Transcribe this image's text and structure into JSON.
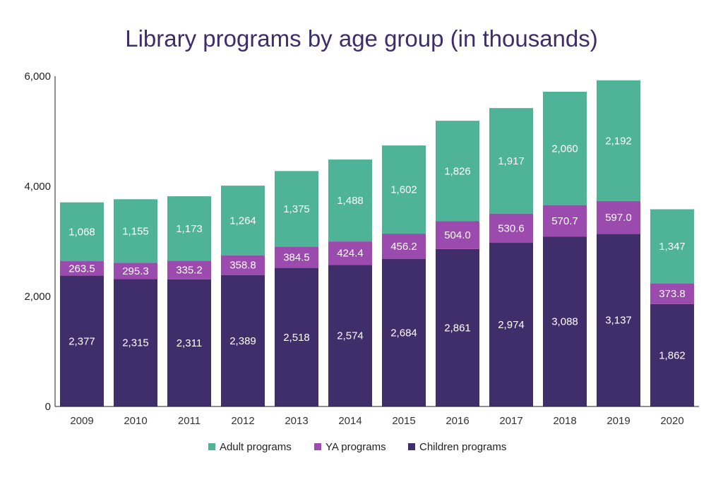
{
  "chart_data": {
    "type": "bar",
    "stacked": true,
    "title": "Library programs by age group (in thousands)",
    "xlabel": "",
    "ylabel": "",
    "ylim": [
      0,
      6000
    ],
    "yticks": [
      0,
      2000,
      4000,
      6000
    ],
    "ytick_labels": [
      "0",
      "2,000",
      "4,000",
      "6,000"
    ],
    "categories": [
      "2009",
      "2010",
      "2011",
      "2012",
      "2013",
      "2014",
      "2015",
      "2016",
      "2017",
      "2018",
      "2019",
      "2020"
    ],
    "series": [
      {
        "name": "Children programs",
        "color": "#402e6b",
        "values": [
          2377,
          2315,
          2311,
          2389,
          2518,
          2574,
          2684,
          2861,
          2974,
          3088,
          3137,
          1862
        ],
        "labels": [
          "2,377",
          "2,315",
          "2,311",
          "2,389",
          "2,518",
          "2,574",
          "2,684",
          "2,861",
          "2,974",
          "3,088",
          "3,137",
          "1,862"
        ]
      },
      {
        "name": "YA programs",
        "color": "#9b4aad",
        "values": [
          263.5,
          295.3,
          335.2,
          358.8,
          384.5,
          424.4,
          456.2,
          504.0,
          530.6,
          570.7,
          597.0,
          373.8
        ],
        "labels": [
          "263.5",
          "295.3",
          "335.2",
          "358.8",
          "384.5",
          "424.4",
          "456.2",
          "504.0",
          "530.6",
          "570.7",
          "597.0",
          "373.8"
        ]
      },
      {
        "name": "Adult programs",
        "color": "#4fb398",
        "values": [
          1068,
          1155,
          1173,
          1264,
          1375,
          1488,
          1602,
          1826,
          1917,
          2060,
          2192,
          1347
        ],
        "labels": [
          "1,068",
          "1,155",
          "1,173",
          "1,264",
          "1,375",
          "1,488",
          "1,602",
          "1,826",
          "1,917",
          "2,060",
          "2,192",
          "1,347"
        ]
      }
    ],
    "legend": {
      "position": "bottom",
      "order": [
        "Adult programs",
        "YA programs",
        "Children programs"
      ]
    },
    "grid": false
  }
}
